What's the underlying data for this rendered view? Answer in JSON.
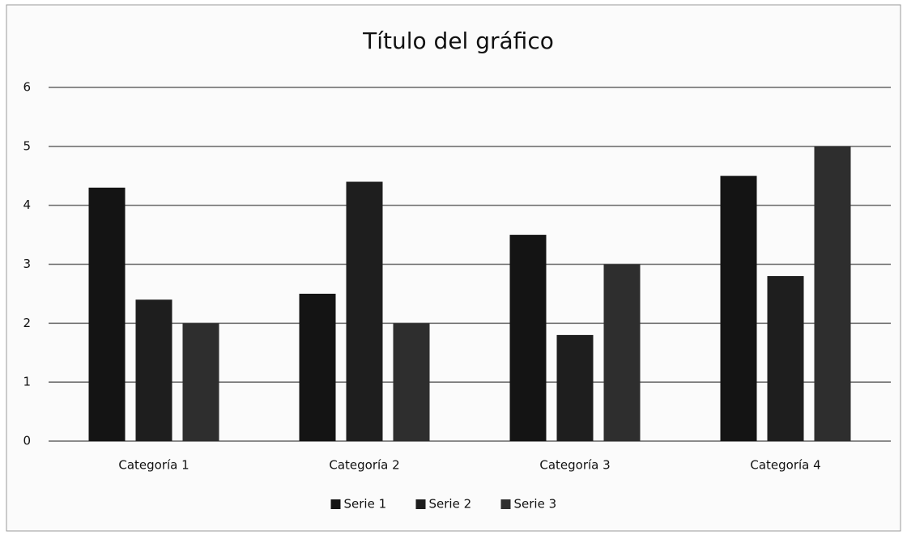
{
  "chart_data": {
    "type": "bar",
    "title": "Título del gráfico",
    "categories": [
      "Categoría 1",
      "Categoría 2",
      "Categoría 3",
      "Categoría 4"
    ],
    "series": [
      {
        "name": "Serie 1",
        "color": "#141414",
        "values": [
          4.3,
          2.5,
          3.5,
          4.5
        ]
      },
      {
        "name": "Serie 2",
        "color": "#1e1e1e",
        "values": [
          2.4,
          4.4,
          1.8,
          2.8
        ]
      },
      {
        "name": "Serie 3",
        "color": "#2e2e2e",
        "values": [
          2,
          2,
          3,
          5
        ]
      }
    ],
    "ylim": [
      0,
      6
    ],
    "yticks": [
      0,
      1,
      2,
      3,
      4,
      5,
      6
    ],
    "grid": true,
    "legend": "bottom"
  }
}
